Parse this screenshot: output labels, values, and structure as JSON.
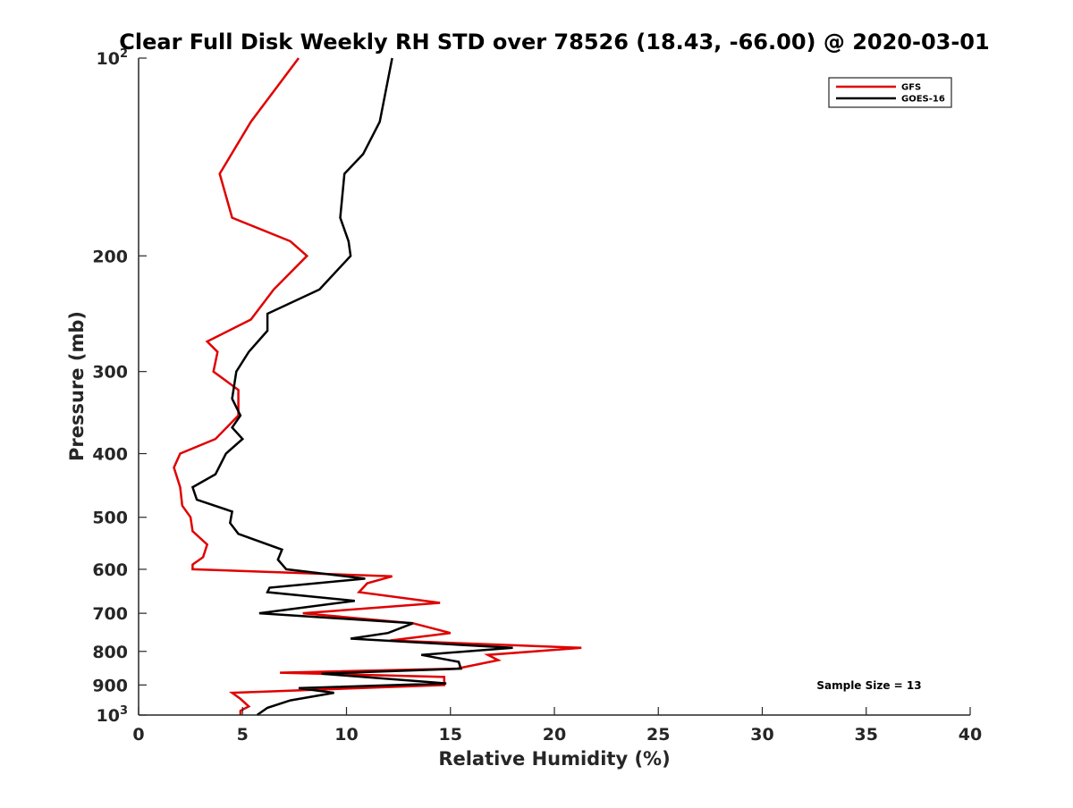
{
  "chart_data": {
    "type": "line",
    "title": "Clear Full Disk Weekly RH STD over 78526 (18.43, -66.00) @ 2020-03-01",
    "xlabel": "Relative Humidity (%)",
    "ylabel": "Pressure (mb)",
    "xlim": [
      0,
      40
    ],
    "ylim": [
      100,
      1000
    ],
    "y_scale": "log",
    "y_reversed": true,
    "x_ticks": [
      "0",
      "5",
      "10",
      "15",
      "20",
      "25",
      "30",
      "35",
      "40"
    ],
    "y_ticks": [
      {
        "value": 100,
        "base": "10",
        "exp": "2"
      },
      {
        "value": 200,
        "label": "200"
      },
      {
        "value": 300,
        "label": "300"
      },
      {
        "value": 400,
        "label": "400"
      },
      {
        "value": 500,
        "label": "500"
      },
      {
        "value": 600,
        "label": "600"
      },
      {
        "value": 700,
        "label": "700"
      },
      {
        "value": 800,
        "label": "800"
      },
      {
        "value": 900,
        "label": "900"
      },
      {
        "value": 1000,
        "base": "10",
        "exp": "3"
      }
    ],
    "legend_position": "top-right",
    "grid": false,
    "annotation": "Sample Size = 13",
    "series": [
      {
        "name": "GFS",
        "color": "#e00000",
        "points": [
          [
            7.7,
            100
          ],
          [
            5.4,
            125
          ],
          [
            3.9,
            150
          ],
          [
            4.5,
            175
          ],
          [
            7.3,
            190
          ],
          [
            8.1,
            200
          ],
          [
            6.5,
            225
          ],
          [
            5.4,
            250
          ],
          [
            3.3,
            270
          ],
          [
            3.8,
            280
          ],
          [
            3.6,
            300
          ],
          [
            4.8,
            320
          ],
          [
            4.8,
            350
          ],
          [
            3.7,
            380
          ],
          [
            2.0,
            400
          ],
          [
            1.7,
            420
          ],
          [
            2.0,
            450
          ],
          [
            2.1,
            480
          ],
          [
            2.5,
            500
          ],
          [
            2.6,
            525
          ],
          [
            3.3,
            550
          ],
          [
            3.1,
            575
          ],
          [
            2.6,
            590
          ],
          [
            2.6,
            600
          ],
          [
            12.2,
            615
          ],
          [
            11.0,
            630
          ],
          [
            10.6,
            650
          ],
          [
            14.5,
            675
          ],
          [
            7.9,
            700
          ],
          [
            13.2,
            725
          ],
          [
            15.0,
            750
          ],
          [
            12.1,
            770
          ],
          [
            21.3,
            790
          ],
          [
            16.8,
            810
          ],
          [
            17.3,
            825
          ],
          [
            15.3,
            850
          ],
          [
            6.8,
            862
          ],
          [
            14.7,
            875
          ],
          [
            14.7,
            900
          ],
          [
            4.5,
            925
          ],
          [
            4.9,
            945
          ],
          [
            5.3,
            970
          ],
          [
            4.9,
            985
          ],
          [
            4.9,
            1000
          ]
        ]
      },
      {
        "name": "GOES-16",
        "color": "#000000",
        "points": [
          [
            12.2,
            100
          ],
          [
            11.6,
            125
          ],
          [
            10.8,
            140
          ],
          [
            9.9,
            150
          ],
          [
            9.7,
            175
          ],
          [
            10.1,
            190
          ],
          [
            10.2,
            200
          ],
          [
            8.7,
            225
          ],
          [
            6.2,
            245
          ],
          [
            6.2,
            260
          ],
          [
            5.3,
            280
          ],
          [
            4.7,
            300
          ],
          [
            4.5,
            330
          ],
          [
            4.9,
            350
          ],
          [
            4.5,
            365
          ],
          [
            5.0,
            380
          ],
          [
            4.2,
            400
          ],
          [
            3.7,
            430
          ],
          [
            2.6,
            450
          ],
          [
            2.8,
            470
          ],
          [
            4.5,
            490
          ],
          [
            4.4,
            510
          ],
          [
            4.8,
            530
          ],
          [
            6.9,
            560
          ],
          [
            6.7,
            580
          ],
          [
            7.1,
            600
          ],
          [
            10.9,
            620
          ],
          [
            6.3,
            640
          ],
          [
            6.2,
            650
          ],
          [
            10.4,
            670
          ],
          [
            5.8,
            700
          ],
          [
            13.2,
            725
          ],
          [
            12.0,
            750
          ],
          [
            10.2,
            765
          ],
          [
            18.0,
            790
          ],
          [
            13.6,
            810
          ],
          [
            15.4,
            830
          ],
          [
            15.5,
            850
          ],
          [
            8.8,
            865
          ],
          [
            14.8,
            895
          ],
          [
            7.7,
            910
          ],
          [
            9.4,
            925
          ],
          [
            7.3,
            950
          ],
          [
            6.2,
            975
          ],
          [
            5.7,
            1000
          ]
        ]
      }
    ]
  }
}
